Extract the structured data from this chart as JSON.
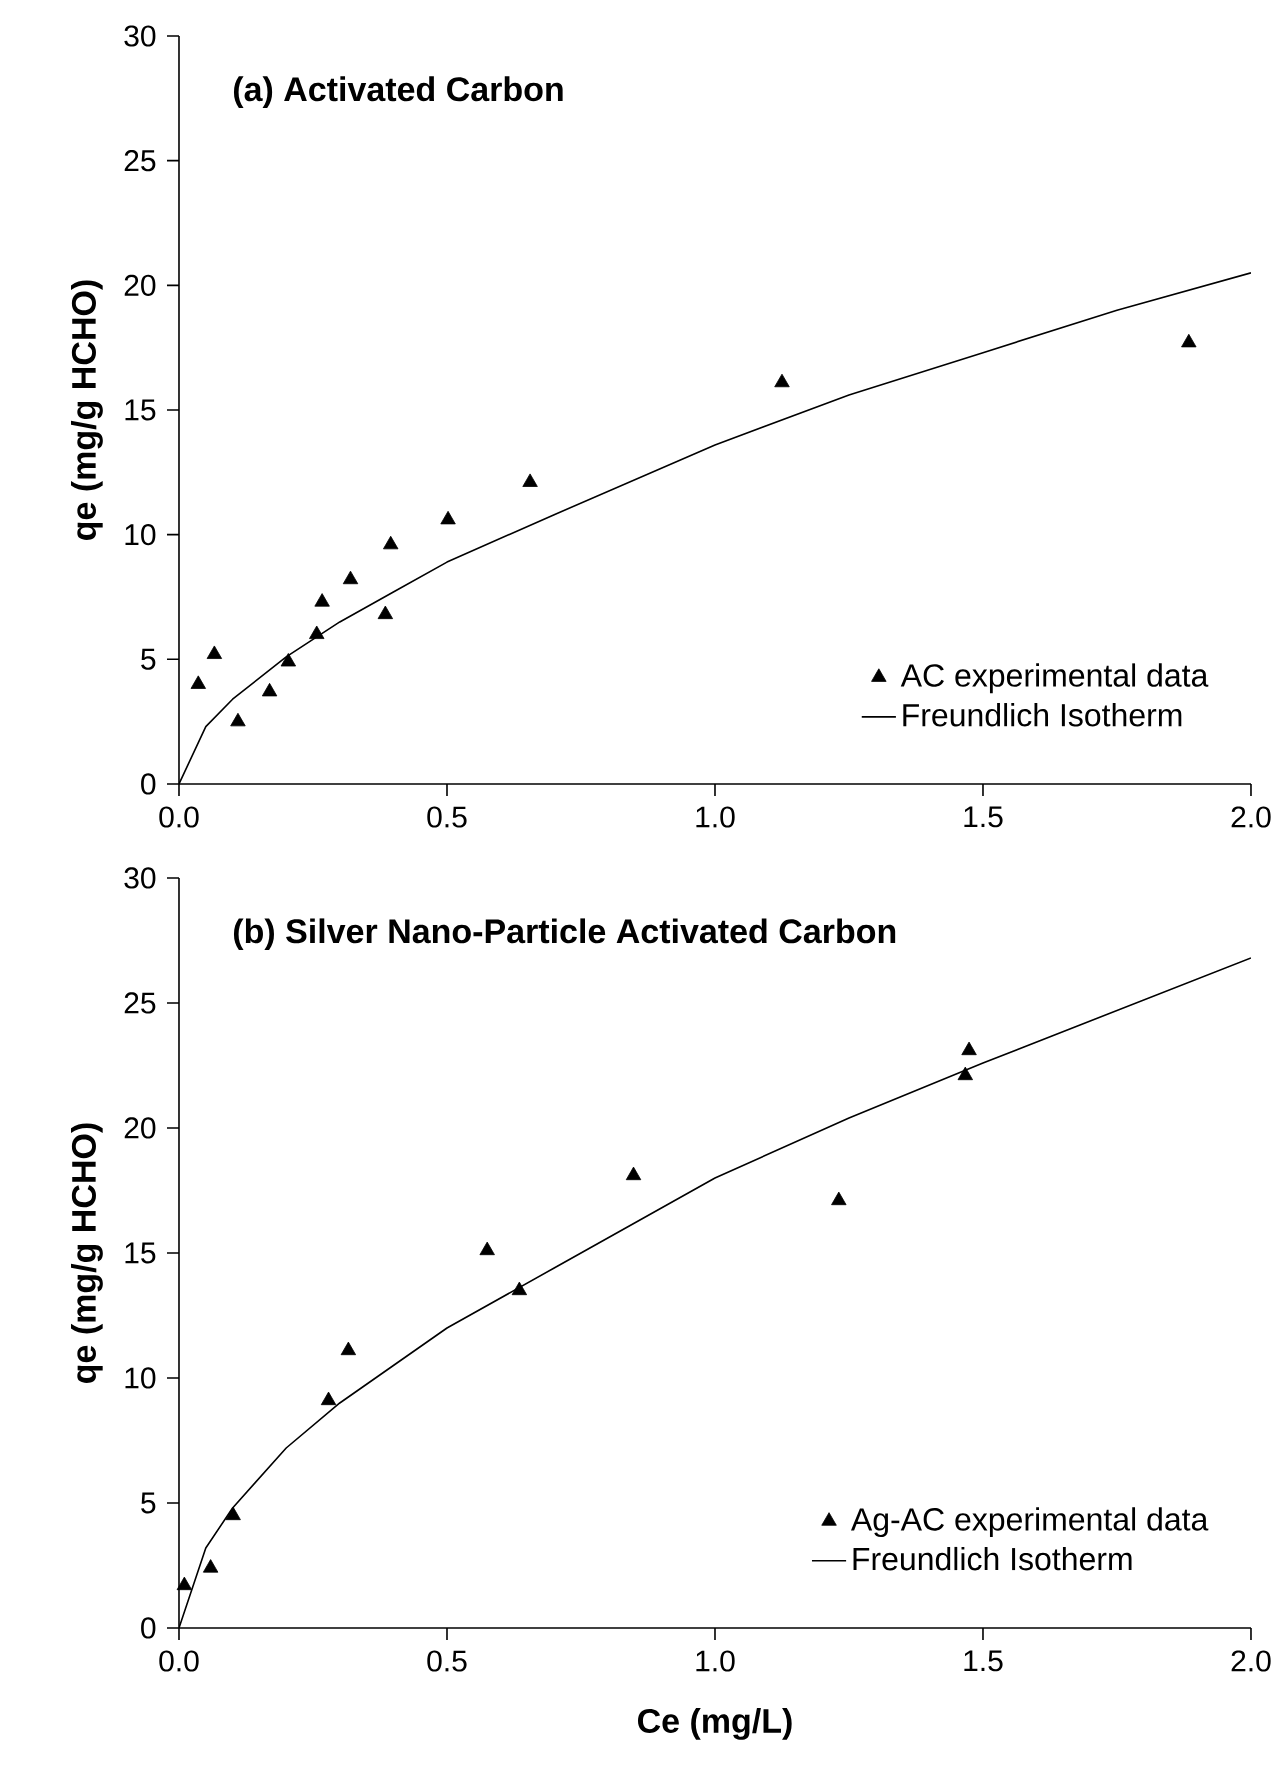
{
  "chart_data": [
    {
      "type": "scatter",
      "title": "(a) Activated Carbon",
      "ylabel": "qe (mg/g HCHO)",
      "xlim": [
        0,
        2
      ],
      "ylim": [
        0,
        30
      ],
      "xticks": [
        {
          "value": 0,
          "label": "0.0"
        },
        {
          "value": 0.5,
          "label": "0.5"
        },
        {
          "value": 1,
          "label": "1.0"
        },
        {
          "value": 1.5,
          "label": "1.5"
        },
        {
          "value": 2,
          "label": "2.0"
        }
      ],
      "yticks": [
        0,
        5,
        10,
        15,
        20,
        25,
        30
      ],
      "grid": false,
      "legend": "bottom right",
      "series": [
        {
          "name": "AC experimental data",
          "marker": "triangle",
          "color": "#000000",
          "x": [
            0.036,
            0.066,
            0.11,
            0.169,
            0.204,
            0.257,
            0.267,
            0.32,
            0.385,
            0.395,
            0.502,
            0.655,
            1.125,
            1.884
          ],
          "values": [
            4.0,
            5.2,
            2.5,
            3.7,
            4.9,
            6.0,
            7.3,
            8.2,
            6.8,
            9.6,
            10.6,
            12.1,
            16.1,
            17.7
          ]
        },
        {
          "name": "Freundlich Isotherm",
          "type": "line",
          "marker": "none",
          "line_style": "solid",
          "color": "#000000",
          "x": [
            0,
            0.05,
            0.1,
            0.2,
            0.3,
            0.4,
            0.5,
            0.7,
            1.0,
            1.25,
            1.5,
            1.75,
            2.0
          ],
          "values": [
            0,
            2.3,
            3.4,
            5.1,
            6.5,
            7.7,
            8.9,
            10.8,
            13.6,
            15.6,
            17.3,
            19.0,
            20.5
          ]
        }
      ]
    },
    {
      "type": "scatter",
      "title": "(b) Silver Nano-Particle Activated Carbon",
      "xlabel": "Ce (mg/L)",
      "ylabel": "qe (mg/g HCHO)",
      "xlim": [
        0,
        2
      ],
      "ylim": [
        0,
        30
      ],
      "xticks": [
        {
          "value": 0,
          "label": "0.0"
        },
        {
          "value": 0.5,
          "label": "0.5"
        },
        {
          "value": 1,
          "label": "1.0"
        },
        {
          "value": 1.5,
          "label": "1.5"
        },
        {
          "value": 2,
          "label": "2.0"
        }
      ],
      "yticks": [
        0,
        5,
        10,
        15,
        20,
        25,
        30
      ],
      "grid": false,
      "legend": "bottom right",
      "series": [
        {
          "name": "Ag-AC experimental data",
          "marker": "triangle",
          "color": "#000000",
          "x": [
            0.01,
            0.059,
            0.101,
            0.279,
            0.316,
            0.575,
            0.635,
            0.848,
            1.231,
            1.467,
            1.474
          ],
          "values": [
            1.7,
            2.4,
            4.5,
            9.1,
            11.1,
            15.1,
            13.5,
            18.1,
            17.1,
            22.1,
            23.1
          ]
        },
        {
          "name": "Freundlich Isotherm",
          "type": "line",
          "marker": "none",
          "line_style": "solid",
          "color": "#000000",
          "x": [
            0,
            0.05,
            0.1,
            0.2,
            0.3,
            0.4,
            0.5,
            0.7,
            1.0,
            1.25,
            1.5,
            1.75,
            2.0
          ],
          "values": [
            0,
            3.2,
            4.8,
            7.2,
            9.0,
            10.5,
            12.0,
            14.4,
            18.0,
            20.4,
            22.6,
            24.7,
            26.8
          ]
        }
      ]
    }
  ]
}
